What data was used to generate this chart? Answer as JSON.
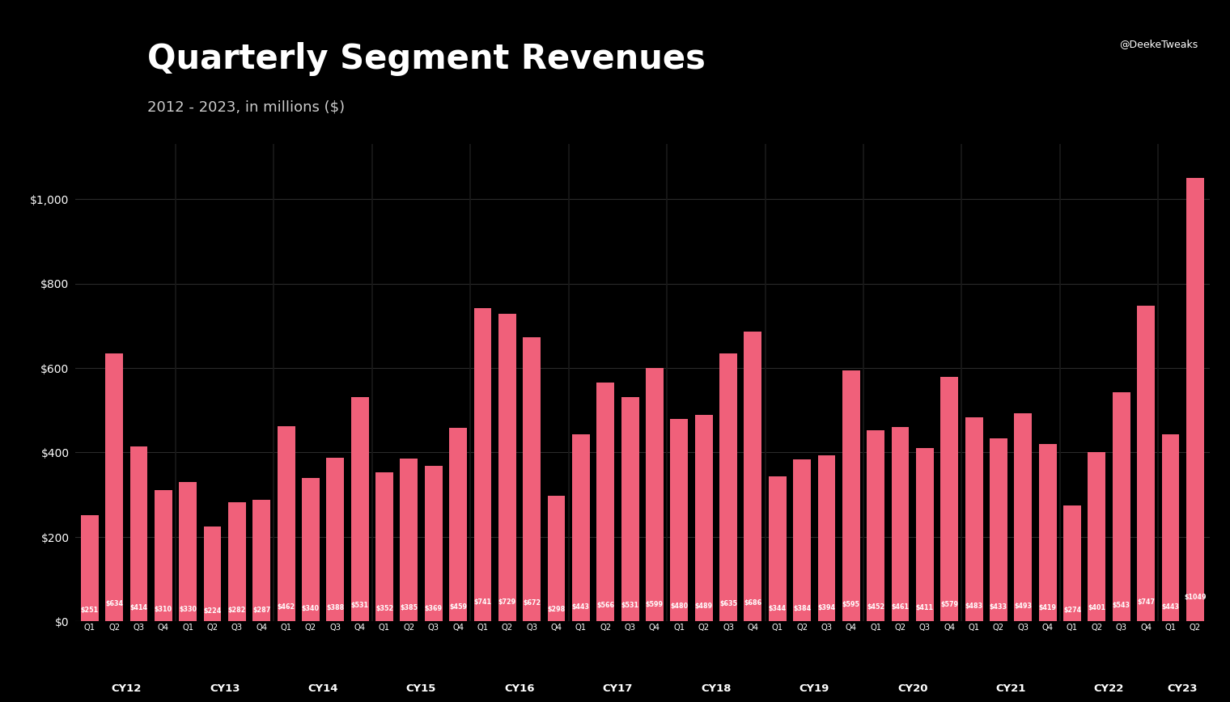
{
  "title": "Quarterly Segment Revenues",
  "subtitle": "2012 - 2023, in millions ($)",
  "background_color": "#000000",
  "header_color": "#1a1a1a",
  "bar_color": "#F0607A",
  "text_color": "#ffffff",
  "grid_color": "#2a2a2a",
  "quarters": [
    "Q1",
    "Q2",
    "Q3",
    "Q4",
    "Q1",
    "Q2",
    "Q3",
    "Q4",
    "Q1",
    "Q2",
    "Q3",
    "Q4",
    "Q1",
    "Q2",
    "Q3",
    "Q4",
    "Q1",
    "Q2",
    "Q3",
    "Q4",
    "Q1",
    "Q2",
    "Q3",
    "Q4",
    "Q1",
    "Q2",
    "Q3",
    "Q4",
    "Q1",
    "Q2",
    "Q3",
    "Q4",
    "Q1",
    "Q2",
    "Q3",
    "Q4",
    "Q1",
    "Q2",
    "Q3",
    "Q4",
    "Q1",
    "Q2",
    "Q3",
    "Q4",
    "Q1",
    "Q2"
  ],
  "values": [
    251,
    634,
    414,
    310,
    330,
    224,
    282,
    287,
    462,
    340,
    388,
    531,
    352,
    385,
    369,
    459,
    741,
    729,
    672,
    298,
    443,
    566,
    531,
    599,
    480,
    489,
    635,
    686,
    344,
    384,
    394,
    595,
    452,
    461,
    411,
    579,
    483,
    433,
    493,
    419,
    274,
    401,
    543,
    747,
    443,
    1049
  ],
  "year_labels": [
    "CY12",
    "CY13",
    "CY14",
    "CY15",
    "CY16",
    "CY17",
    "CY18",
    "CY19",
    "CY20",
    "CY21",
    "CY22",
    "CY23"
  ],
  "year_starts": [
    0,
    4,
    8,
    12,
    16,
    20,
    24,
    28,
    32,
    36,
    40,
    44
  ],
  "year_sizes": [
    4,
    4,
    4,
    4,
    4,
    4,
    4,
    4,
    4,
    4,
    4,
    2
  ],
  "ytick_labels": [
    "$0",
    "$200",
    "$400",
    "$600",
    "$800",
    "$1,000"
  ],
  "ytick_values": [
    0,
    200,
    400,
    600,
    800,
    1000
  ],
  "ylim": [
    0,
    1130
  ]
}
